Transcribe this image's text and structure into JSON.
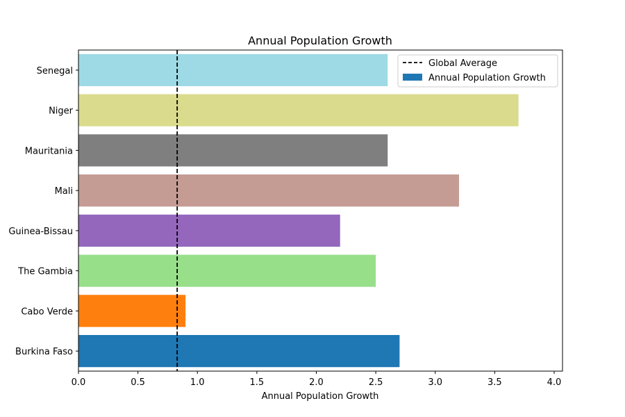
{
  "chart_data": {
    "type": "bar",
    "orientation": "horizontal",
    "title": "Annual Population Growth",
    "xlabel": "Annual Population Growth",
    "ylabel": "",
    "xlim": [
      0,
      4.07
    ],
    "xticks": [
      0.0,
      0.5,
      1.0,
      1.5,
      2.0,
      2.5,
      3.0,
      3.5,
      4.0
    ],
    "xtick_labels": [
      "0.0",
      "0.5",
      "1.0",
      "1.5",
      "2.0",
      "2.5",
      "3.0",
      "3.5",
      "4.0"
    ],
    "categories": [
      "Burkina Faso",
      "Cabo Verde",
      "The Gambia",
      "Guinea-Bissau",
      "Mali",
      "Mauritania",
      "Niger",
      "Senegal"
    ],
    "values": [
      2.7,
      0.9,
      2.5,
      2.2,
      3.2,
      2.6,
      3.7,
      2.6
    ],
    "colors": [
      "#1f77b4",
      "#ff7f0e",
      "#98df8a",
      "#9467bd",
      "#c49c94",
      "#7f7f7f",
      "#dbdb8d",
      "#9edae5"
    ],
    "reference_line": {
      "label": "Global Average",
      "value": 0.83,
      "color": "#000000"
    },
    "legend": {
      "position": "top-right",
      "entries": [
        {
          "label": "Global Average",
          "kind": "dashed-line",
          "color": "#000000"
        },
        {
          "label": "Annual Population Growth",
          "kind": "patch",
          "color": "#1f77b4"
        }
      ]
    },
    "grid": false
  }
}
